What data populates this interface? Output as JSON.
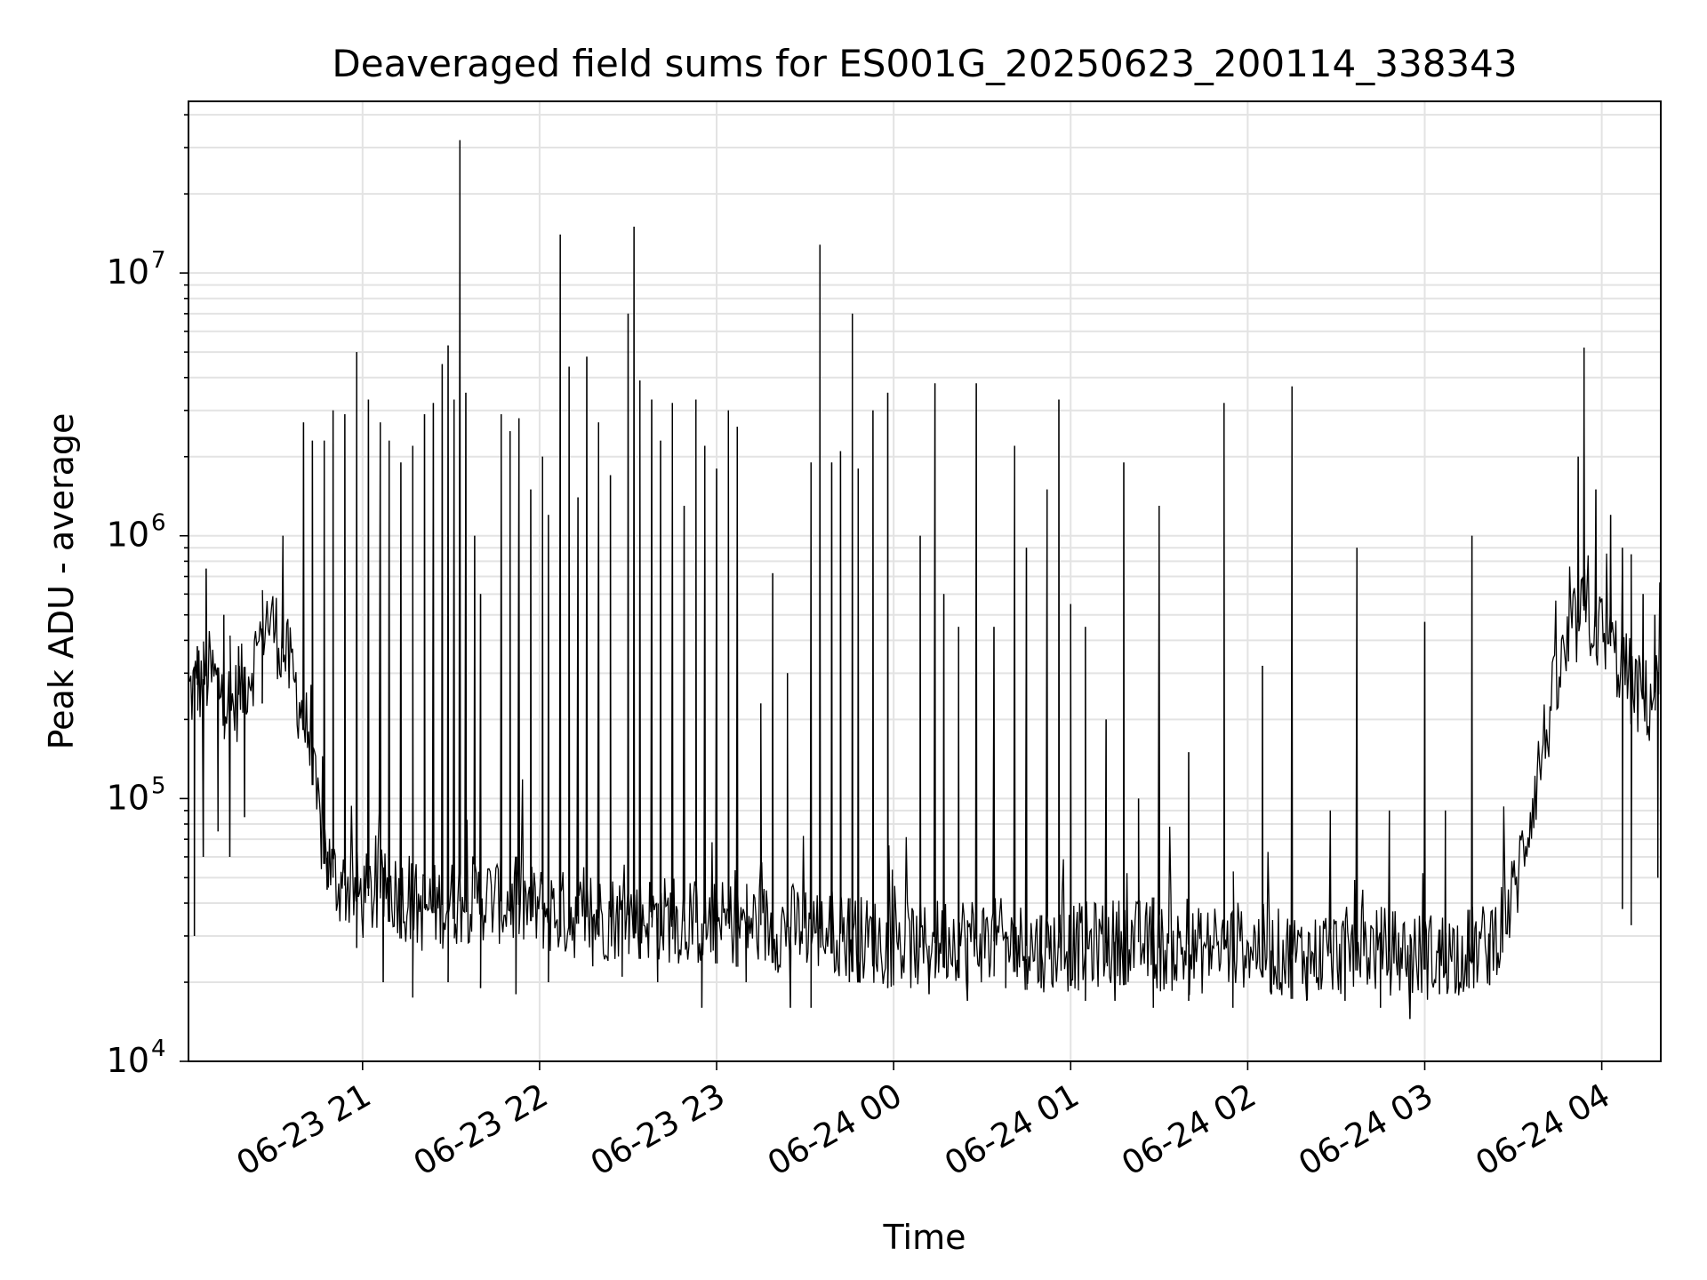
{
  "chart_data": {
    "type": "line",
    "title": "Deaveraged field sums for ES001G_20250623_200114_338343",
    "xlabel": "Time",
    "ylabel": "Peak ADU - average",
    "yscale": "log",
    "ylim": [
      10000,
      45000000
    ],
    "xlim": [
      "2025-06-23 20:01",
      "2025-06-24 04:20"
    ],
    "grid": true,
    "line_color": "#000000",
    "x_ticks": [
      {
        "value": "2025-06-23 21:00",
        "label": "06-23 21"
      },
      {
        "value": "2025-06-23 22:00",
        "label": "06-23 22"
      },
      {
        "value": "2025-06-23 23:00",
        "label": "06-23 23"
      },
      {
        "value": "2025-06-24 00:00",
        "label": "06-24 00"
      },
      {
        "value": "2025-06-24 01:00",
        "label": "06-24 01"
      },
      {
        "value": "2025-06-24 02:00",
        "label": "06-24 02"
      },
      {
        "value": "2025-06-24 03:00",
        "label": "06-24 03"
      },
      {
        "value": "2025-06-24 04:00",
        "label": "06-24 04"
      }
    ],
    "y_ticks": [
      {
        "value": 10000,
        "base": "10",
        "exp": "4"
      },
      {
        "value": 100000,
        "base": "10",
        "exp": "5"
      },
      {
        "value": 1000000,
        "base": "10",
        "exp": "6"
      },
      {
        "value": 10000000,
        "base": "10",
        "exp": "7"
      }
    ],
    "series": [
      {
        "values": [
          [
            "2025-06-23 20:01",
            250000
          ],
          [
            "2025-06-23 20:08",
            300000
          ],
          [
            "2025-06-23 20:12",
            260000
          ],
          [
            "2025-06-23 20:16",
            220000
          ],
          [
            "2025-06-23 20:20",
            280000
          ],
          [
            "2025-06-23 20:24",
            350000
          ],
          [
            "2025-06-23 20:27",
            500000
          ],
          [
            "2025-06-23 20:30",
            450000
          ],
          [
            "2025-06-23 20:34",
            350000
          ],
          [
            "2025-06-23 20:38",
            250000
          ],
          [
            "2025-06-23 20:41",
            180000
          ],
          [
            "2025-06-23 20:44",
            100000
          ],
          [
            "2025-06-23 20:47",
            65000
          ],
          [
            "2025-06-23 20:50",
            50000
          ],
          [
            "2025-06-23 21:00",
            42000
          ],
          [
            "2025-06-23 21:10",
            45000
          ],
          [
            "2025-06-23 21:20",
            38000
          ],
          [
            "2025-06-23 21:30",
            40000
          ],
          [
            "2025-06-23 21:40",
            42000
          ],
          [
            "2025-06-23 21:50",
            40000
          ],
          [
            "2025-06-23 22:00",
            38000
          ],
          [
            "2025-06-23 22:10",
            36000
          ],
          [
            "2025-06-23 22:20",
            35000
          ],
          [
            "2025-06-23 22:30",
            36000
          ],
          [
            "2025-06-23 22:40",
            35000
          ],
          [
            "2025-06-23 22:50",
            34000
          ],
          [
            "2025-06-23 23:00",
            33000
          ],
          [
            "2025-06-23 23:10",
            34000
          ],
          [
            "2025-06-23 23:20",
            32000
          ],
          [
            "2025-06-23 23:30",
            33000
          ],
          [
            "2025-06-23 23:40",
            31000
          ],
          [
            "2025-06-23 23:50",
            29000
          ],
          [
            "2025-06-24 00:00",
            28000
          ],
          [
            "2025-06-24 00:10",
            27000
          ],
          [
            "2025-06-24 00:20",
            30000
          ],
          [
            "2025-06-24 00:30",
            29000
          ],
          [
            "2025-06-24 00:40",
            28000
          ],
          [
            "2025-06-24 00:50",
            27000
          ],
          [
            "2025-06-24 01:00",
            27000
          ],
          [
            "2025-06-24 01:10",
            28000
          ],
          [
            "2025-06-24 01:20",
            29000
          ],
          [
            "2025-06-24 01:30",
            27000
          ],
          [
            "2025-06-24 01:40",
            26000
          ],
          [
            "2025-06-24 01:50",
            27000
          ],
          [
            "2025-06-24 02:00",
            28000
          ],
          [
            "2025-06-24 02:10",
            26000
          ],
          [
            "2025-06-24 02:20",
            25000
          ],
          [
            "2025-06-24 02:30",
            26000
          ],
          [
            "2025-06-24 02:40",
            27000
          ],
          [
            "2025-06-24 02:50",
            26000
          ],
          [
            "2025-06-24 03:00",
            25000
          ],
          [
            "2025-06-24 03:10",
            26000
          ],
          [
            "2025-06-24 03:20",
            27000
          ],
          [
            "2025-06-24 03:25",
            32000
          ],
          [
            "2025-06-24 03:30",
            42000
          ],
          [
            "2025-06-24 03:34",
            70000
          ],
          [
            "2025-06-24 03:38",
            120000
          ],
          [
            "2025-06-24 03:42",
            200000
          ],
          [
            "2025-06-24 03:46",
            300000
          ],
          [
            "2025-06-24 03:50",
            420000
          ],
          [
            "2025-06-24 03:54",
            520000
          ],
          [
            "2025-06-24 03:58",
            450000
          ],
          [
            "2025-06-24 04:03",
            380000
          ],
          [
            "2025-06-24 04:08",
            300000
          ],
          [
            "2025-06-24 04:12",
            250000
          ],
          [
            "2025-06-24 04:16",
            230000
          ],
          [
            "2025-06-24 04:20",
            280000
          ]
        ]
      }
    ],
    "spikes": [
      [
        "2025-06-23 20:04",
        380000
      ],
      [
        "2025-06-23 20:07",
        750000
      ],
      [
        "2025-06-23 20:13",
        500000
      ],
      [
        "2025-06-23 20:18",
        380000
      ],
      [
        "2025-06-23 20:26",
        400000
      ],
      [
        "2025-06-23 20:33",
        1000000
      ],
      [
        "2025-06-23 20:40",
        2700000
      ],
      [
        "2025-06-23 20:43",
        2300000
      ],
      [
        "2025-06-23 20:47",
        2300000
      ],
      [
        "2025-06-23 20:50",
        3000000
      ],
      [
        "2025-06-23 20:54",
        2900000
      ],
      [
        "2025-06-23 20:58",
        5000000
      ],
      [
        "2025-06-23 21:02",
        3300000
      ],
      [
        "2025-06-23 21:06",
        2700000
      ],
      [
        "2025-06-23 21:09",
        2300000
      ],
      [
        "2025-06-23 21:13",
        1900000
      ],
      [
        "2025-06-23 21:17",
        2200000
      ],
      [
        "2025-06-23 21:21",
        2900000
      ],
      [
        "2025-06-23 21:24",
        3200000
      ],
      [
        "2025-06-23 21:27",
        4500000
      ],
      [
        "2025-06-23 21:29",
        5300000
      ],
      [
        "2025-06-23 21:31",
        3300000
      ],
      [
        "2025-06-23 21:33",
        32000000
      ],
      [
        "2025-06-23 21:35",
        3500000
      ],
      [
        "2025-06-23 21:38",
        1000000
      ],
      [
        "2025-06-23 21:40",
        600000
      ],
      [
        "2025-06-23 21:47",
        2900000
      ],
      [
        "2025-06-23 21:50",
        2500000
      ],
      [
        "2025-06-23 21:53",
        2800000
      ],
      [
        "2025-06-23 21:57",
        1500000
      ],
      [
        "2025-06-23 22:01",
        2000000
      ],
      [
        "2025-06-23 22:03",
        1200000
      ],
      [
        "2025-06-23 22:07",
        14000000
      ],
      [
        "2025-06-23 22:10",
        4400000
      ],
      [
        "2025-06-23 22:13",
        1400000
      ],
      [
        "2025-06-23 22:16",
        4800000
      ],
      [
        "2025-06-23 22:20",
        2700000
      ],
      [
        "2025-06-23 22:24",
        1700000
      ],
      [
        "2025-06-23 22:30",
        7000000
      ],
      [
        "2025-06-23 22:32",
        15000000
      ],
      [
        "2025-06-23 22:34",
        3900000
      ],
      [
        "2025-06-23 22:38",
        3300000
      ],
      [
        "2025-06-23 22:41",
        2300000
      ],
      [
        "2025-06-23 22:45",
        3200000
      ],
      [
        "2025-06-23 22:49",
        1300000
      ],
      [
        "2025-06-23 22:53",
        3300000
      ],
      [
        "2025-06-23 22:56",
        2200000
      ],
      [
        "2025-06-23 23:00",
        1800000
      ],
      [
        "2025-06-23 23:04",
        3000000
      ],
      [
        "2025-06-23 23:07",
        2600000
      ],
      [
        "2025-06-23 23:15",
        230000
      ],
      [
        "2025-06-23 23:19",
        720000
      ],
      [
        "2025-06-23 23:24",
        300000
      ],
      [
        "2025-06-23 23:32",
        1900000
      ],
      [
        "2025-06-23 23:35",
        12800000
      ],
      [
        "2025-06-23 23:39",
        1900000
      ],
      [
        "2025-06-23 23:42",
        2100000
      ],
      [
        "2025-06-23 23:46",
        7000000
      ],
      [
        "2025-06-23 23:48",
        1800000
      ],
      [
        "2025-06-23 23:53",
        3000000
      ],
      [
        "2025-06-23 23:58",
        3500000
      ],
      [
        "2025-06-24 00:09",
        1000000
      ],
      [
        "2025-06-24 00:14",
        3800000
      ],
      [
        "2025-06-24 00:17",
        600000
      ],
      [
        "2025-06-24 00:22",
        450000
      ],
      [
        "2025-06-24 00:28",
        3800000
      ],
      [
        "2025-06-24 00:34",
        450000
      ],
      [
        "2025-06-24 00:41",
        2200000
      ],
      [
        "2025-06-24 00:45",
        900000
      ],
      [
        "2025-06-24 00:52",
        1500000
      ],
      [
        "2025-06-24 00:56",
        3300000
      ],
      [
        "2025-06-24 01:00",
        550000
      ],
      [
        "2025-06-24 01:05",
        450000
      ],
      [
        "2025-06-24 01:12",
        200000
      ],
      [
        "2025-06-24 01:18",
        1900000
      ],
      [
        "2025-06-24 01:23",
        100000
      ],
      [
        "2025-06-24 01:30",
        1300000
      ],
      [
        "2025-06-24 01:40",
        150000
      ],
      [
        "2025-06-24 01:52",
        3200000
      ],
      [
        "2025-06-24 02:05",
        320000
      ],
      [
        "2025-06-24 02:15",
        3700000
      ],
      [
        "2025-06-24 02:28",
        90000
      ],
      [
        "2025-06-24 02:37",
        900000
      ],
      [
        "2025-06-24 02:48",
        90000
      ],
      [
        "2025-06-24 03:00",
        470000
      ],
      [
        "2025-06-24 03:07",
        90000
      ],
      [
        "2025-06-24 03:16",
        1000000
      ],
      [
        "2025-06-24 03:52",
        2000000
      ],
      [
        "2025-06-24 03:54",
        5200000
      ],
      [
        "2025-06-24 03:58",
        1500000
      ],
      [
        "2025-06-24 04:03",
        1200000
      ],
      [
        "2025-06-24 04:07",
        900000
      ],
      [
        "2025-06-24 04:10",
        850000
      ],
      [
        "2025-06-24 04:14",
        600000
      ],
      [
        "2025-06-24 04:18",
        500000
      ]
    ],
    "dips": [
      [
        "2025-06-23 20:03",
        30000
      ],
      [
        "2025-06-23 20:06",
        60000
      ],
      [
        "2025-06-23 20:11",
        75000
      ],
      [
        "2025-06-23 20:15",
        60000
      ],
      [
        "2025-06-23 20:20",
        85000
      ],
      [
        "2025-06-23 20:26",
        230000
      ],
      [
        "2025-06-23 20:48",
        45000
      ],
      [
        "2025-06-23 20:58",
        27000
      ],
      [
        "2025-06-23 21:07",
        20000
      ],
      [
        "2025-06-23 21:17",
        17500
      ],
      [
        "2025-06-23 21:29",
        20000
      ],
      [
        "2025-06-23 21:40",
        19000
      ],
      [
        "2025-06-23 21:52",
        18000
      ],
      [
        "2025-06-23 22:03",
        20000
      ],
      [
        "2025-06-23 22:18",
        23000
      ],
      [
        "2025-06-23 22:28",
        21000
      ],
      [
        "2025-06-23 22:40",
        20000
      ],
      [
        "2025-06-23 22:55",
        16000
      ],
      [
        "2025-06-23 23:10",
        20000
      ],
      [
        "2025-06-23 23:25",
        16000
      ],
      [
        "2025-06-23 23:32",
        16000
      ],
      [
        "2025-06-23 23:45",
        20000
      ],
      [
        "2025-06-23 23:58",
        19000
      ],
      [
        "2025-06-24 00:12",
        18000
      ],
      [
        "2025-06-24 00:25",
        17000
      ],
      [
        "2025-06-24 00:38",
        19000
      ],
      [
        "2025-06-24 00:50",
        19000
      ],
      [
        "2025-06-24 01:05",
        17000
      ],
      [
        "2025-06-24 01:15",
        17000
      ],
      [
        "2025-06-24 01:28",
        16000
      ],
      [
        "2025-06-24 01:40",
        17000
      ],
      [
        "2025-06-24 01:55",
        16000
      ],
      [
        "2025-06-24 02:08",
        18000
      ],
      [
        "2025-06-24 02:20",
        17000
      ],
      [
        "2025-06-24 02:33",
        17000
      ],
      [
        "2025-06-24 02:45",
        16000
      ],
      [
        "2025-06-24 02:55",
        14500
      ],
      [
        "2025-06-24 03:05",
        18000
      ],
      [
        "2025-06-24 03:15",
        19000
      ],
      [
        "2025-06-24 03:22",
        19500
      ],
      [
        "2025-06-24 04:07",
        38000
      ],
      [
        "2025-06-24 04:10",
        33000
      ],
      [
        "2025-06-24 04:19",
        50000
      ]
    ]
  }
}
